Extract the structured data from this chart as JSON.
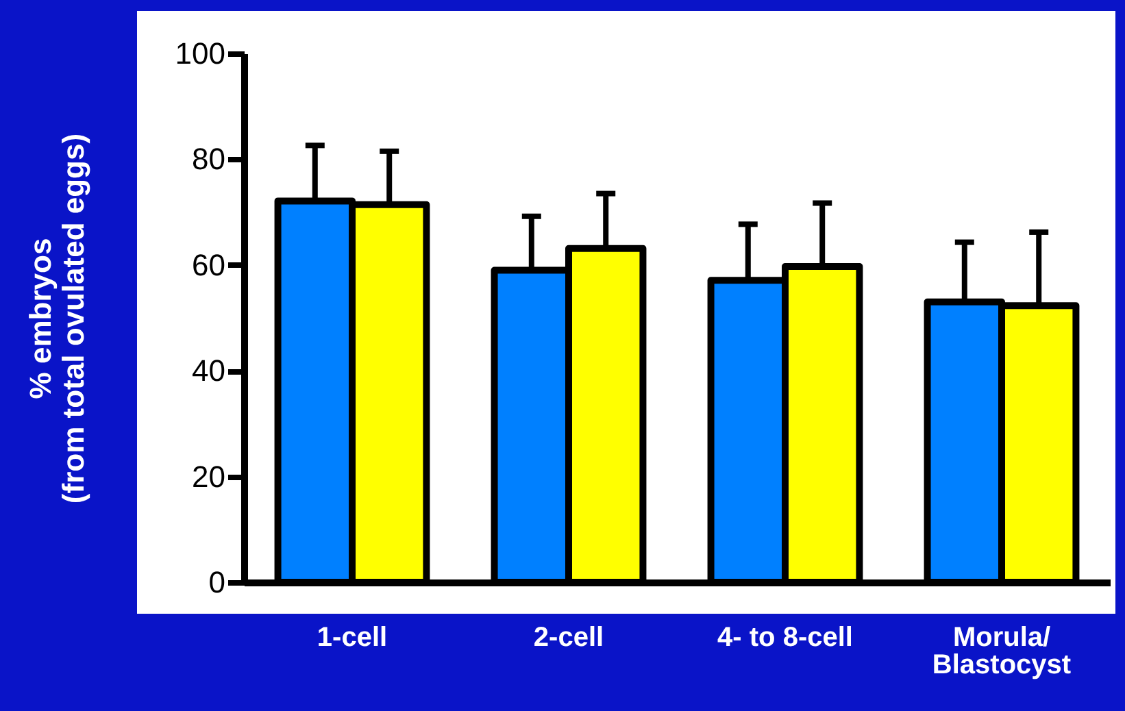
{
  "chart_data": {
    "type": "bar",
    "ylabel": "% embryos\n(from total ovulated eggs)",
    "categories": [
      "1-cell",
      "2-cell",
      "4- to 8-cell",
      "Morula/\nBlastocyst"
    ],
    "series": [
      {
        "color": "#0080ff",
        "values": [
          72.1,
          59.0,
          57.1,
          53.0
        ],
        "errors": [
          [
            72.1,
            82.6
          ],
          [
            59.0,
            69.2
          ],
          [
            57.1,
            67.7
          ],
          [
            53.0,
            64.3
          ]
        ]
      },
      {
        "color": "#ffff00",
        "values": [
          71.4,
          63.1,
          59.7,
          52.3
        ],
        "errors": [
          [
            71.4,
            81.5
          ],
          [
            63.1,
            73.5
          ],
          [
            59.7,
            71.7
          ],
          [
            52.3,
            66.2
          ]
        ]
      }
    ],
    "ylim": [
      0,
      100
    ],
    "yticks": [
      0,
      20,
      40,
      60,
      80,
      100
    ],
    "grid": false,
    "legend": false
  }
}
